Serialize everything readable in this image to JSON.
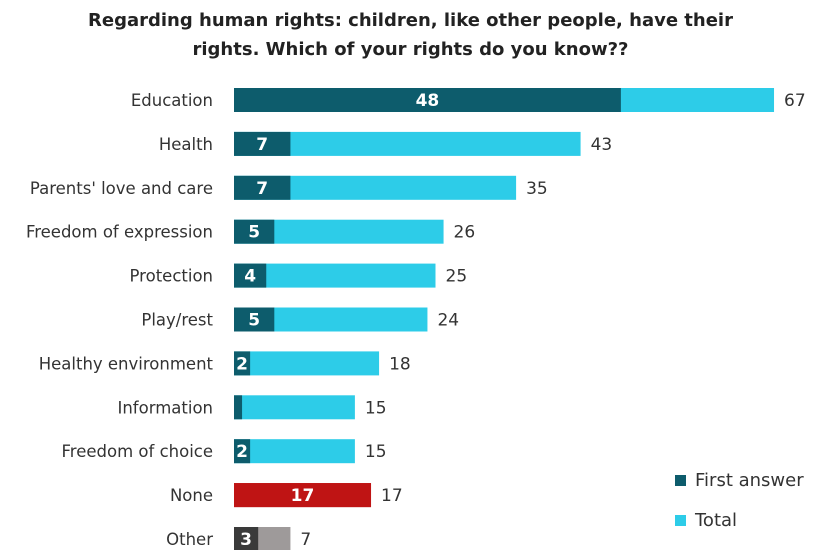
{
  "chart_data": {
    "type": "bar",
    "orientation": "horizontal",
    "title_lines": [
      "Regarding human rights: children, like other people, have their",
      "rights. Which of your rights do you know??"
    ],
    "categories": [
      "Education",
      "Health",
      "Parents' love and care",
      "Freedom of expression",
      "Protection",
      "Play/rest",
      "Healthy environment",
      "Information",
      "Freedom of choice",
      "None",
      "Other"
    ],
    "series": [
      {
        "name": "First answer",
        "values": [
          48,
          7,
          7,
          5,
          4,
          5,
          2,
          1,
          2,
          17,
          3
        ]
      },
      {
        "name": "Total",
        "values": [
          67,
          43,
          35,
          26,
          25,
          24,
          18,
          15,
          15,
          17,
          7
        ]
      }
    ],
    "first_answer_labels": [
      "48",
      "7",
      "7",
      "5",
      "4",
      "5",
      "2",
      "",
      "2",
      "17",
      "3"
    ],
    "bar_colors": {
      "first_answer": "#0d5c6c",
      "total": "#2dcce8",
      "none_first": "#bf1414",
      "none_total": "#bf1414",
      "other_first": "#3a3a3a",
      "other_total": "#9e9a9a"
    },
    "xlim": [
      0,
      67
    ],
    "grid": false,
    "legend_position": "bottom-right"
  },
  "legend": [
    {
      "label": "First answer",
      "color": "#0d5c6c"
    },
    {
      "label": "Total",
      "color": "#2dcce8"
    }
  ]
}
